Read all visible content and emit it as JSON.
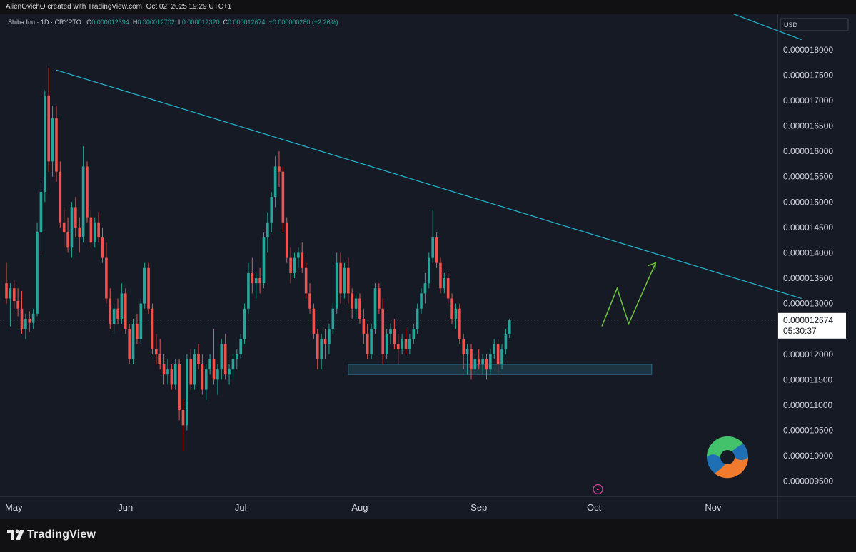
{
  "credit": "AlienOvichO created with TradingView.com, Oct 02, 2025 19:29 UTC+1",
  "legend": {
    "symbol": "Shiba Inu · 1D · CRYPTO",
    "o_label": "O",
    "o": "0.000012394",
    "h_label": "H",
    "h": "0.000012702",
    "l_label": "L",
    "l": "0.000012320",
    "c_label": "C",
    "c": "0.000012674",
    "change": "+0.000000280 (+2.26%)"
  },
  "brand": "TradingView",
  "colors": {
    "up": "#26a69a",
    "down": "#ef5350",
    "trendline": "#22b7cf",
    "projection": "#6fc33d",
    "zone": "#1d3b45",
    "background": "#161a25"
  },
  "chart_data": {
    "type": "candlestick",
    "currency": "USD",
    "y_ticks": [
      "0.000018000",
      "0.000017500",
      "0.000017000",
      "0.000016500",
      "0.000016000",
      "0.000015500",
      "0.000015000",
      "0.000014500",
      "0.000014000",
      "0.000013500",
      "0.000013000",
      "0.000012500",
      "0.000012000",
      "0.000011500",
      "0.000011000",
      "0.000010500",
      "0.000010000",
      "0.000009500"
    ],
    "ylim": [
      9.2e-06,
      1.87e-05
    ],
    "x_labels": [
      {
        "label": "May",
        "date": "2025-05-01"
      },
      {
        "label": "Jun",
        "date": "2025-06-01"
      },
      {
        "label": "Jul",
        "date": "2025-07-01"
      },
      {
        "label": "Aug",
        "date": "2025-08-01"
      },
      {
        "label": "Sep",
        "date": "2025-09-01"
      },
      {
        "label": "Oct",
        "date": "2025-10-01"
      },
      {
        "label": "Nov",
        "date": "2025-11-01"
      }
    ],
    "first_date": "2025-05-01",
    "last_price": "0.000012674",
    "countdown": "05:30:37",
    "ohlc": [
      [
        1.34e-05,
        1.38e-05,
        1.3e-05,
        1.31e-05
      ],
      [
        1.31e-05,
        1.34e-05,
        1.255e-05,
        1.33e-05
      ],
      [
        1.33e-05,
        1.345e-05,
        1.29e-05,
        1.305e-05
      ],
      [
        1.305e-05,
        1.33e-05,
        1.275e-05,
        1.29e-05
      ],
      [
        1.29e-05,
        1.325e-05,
        1.24e-05,
        1.25e-05
      ],
      [
        1.25e-05,
        1.28e-05,
        1.23e-05,
        1.27e-05
      ],
      [
        1.27e-05,
        1.285e-05,
        1.245e-05,
        1.262e-05
      ],
      [
        1.262e-05,
        1.29e-05,
        1.25e-05,
        1.28e-05
      ],
      [
        1.28e-05,
        1.46e-05,
        1.275e-05,
        1.44e-05
      ],
      [
        1.44e-05,
        1.54e-05,
        1.4e-05,
        1.52e-05
      ],
      [
        1.52e-05,
        1.72e-05,
        1.5e-05,
        1.71e-05
      ],
      [
        1.71e-05,
        1.765e-05,
        1.56e-05,
        1.58e-05
      ],
      [
        1.58e-05,
        1.69e-05,
        1.55e-05,
        1.665e-05
      ],
      [
        1.665e-05,
        1.69e-05,
        1.54e-05,
        1.56e-05
      ],
      [
        1.56e-05,
        1.58e-05,
        1.45e-05,
        1.46e-05
      ],
      [
        1.46e-05,
        1.49e-05,
        1.41e-05,
        1.44e-05
      ],
      [
        1.44e-05,
        1.47e-05,
        1.4e-05,
        1.41e-05
      ],
      [
        1.41e-05,
        1.5e-05,
        1.39e-05,
        1.49e-05
      ],
      [
        1.49e-05,
        1.51e-05,
        1.43e-05,
        1.45e-05
      ],
      [
        1.45e-05,
        1.47e-05,
        1.4e-05,
        1.43e-05
      ],
      [
        1.43e-05,
        1.61e-05,
        1.42e-05,
        1.57e-05
      ],
      [
        1.57e-05,
        1.58e-05,
        1.46e-05,
        1.47e-05
      ],
      [
        1.47e-05,
        1.49e-05,
        1.41e-05,
        1.42e-05
      ],
      [
        1.42e-05,
        1.47e-05,
        1.41e-05,
        1.46e-05
      ],
      [
        1.46e-05,
        1.48e-05,
        1.42e-05,
        1.43e-05
      ],
      [
        1.43e-05,
        1.45e-05,
        1.38e-05,
        1.39e-05
      ],
      [
        1.39e-05,
        1.42e-05,
        1.3e-05,
        1.31e-05
      ],
      [
        1.31e-05,
        1.33e-05,
        1.25e-05,
        1.26e-05
      ],
      [
        1.26e-05,
        1.3e-05,
        1.24e-05,
        1.29e-05
      ],
      [
        1.29e-05,
        1.31e-05,
        1.26e-05,
        1.27e-05
      ],
      [
        1.27e-05,
        1.34e-05,
        1.26e-05,
        1.32e-05
      ],
      [
        1.32e-05,
        1.33e-05,
        1.24e-05,
        1.25e-05
      ],
      [
        1.25e-05,
        1.26e-05,
        1.18e-05,
        1.19e-05
      ],
      [
        1.19e-05,
        1.27e-05,
        1.18e-05,
        1.26e-05
      ],
      [
        1.26e-05,
        1.28e-05,
        1.22e-05,
        1.23e-05
      ],
      [
        1.23e-05,
        1.31e-05,
        1.22e-05,
        1.3e-05
      ],
      [
        1.3e-05,
        1.38e-05,
        1.29e-05,
        1.37e-05
      ],
      [
        1.37e-05,
        1.38e-05,
        1.28e-05,
        1.29e-05
      ],
      [
        1.29e-05,
        1.3e-05,
        1.2e-05,
        1.21e-05
      ],
      [
        1.21e-05,
        1.24e-05,
        1.18e-05,
        1.2e-05
      ],
      [
        1.2e-05,
        1.23e-05,
        1.17e-05,
        1.18e-05
      ],
      [
        1.18e-05,
        1.2e-05,
        1.14e-05,
        1.16e-05
      ],
      [
        1.16e-05,
        1.19e-05,
        1.14e-05,
        1.17e-05
      ],
      [
        1.17e-05,
        1.18e-05,
        1.13e-05,
        1.14e-05
      ],
      [
        1.14e-05,
        1.19e-05,
        1.13e-05,
        1.18e-05
      ],
      [
        1.18e-05,
        1.19e-05,
        1.07e-05,
        1.09e-05
      ],
      [
        1.09e-05,
        1.11e-05,
        1.01e-05,
        1.06e-05
      ],
      [
        1.06e-05,
        1.2e-05,
        1.05e-05,
        1.19e-05
      ],
      [
        1.19e-05,
        1.21e-05,
        1.13e-05,
        1.14e-05
      ],
      [
        1.14e-05,
        1.21e-05,
        1.13e-05,
        1.2e-05
      ],
      [
        1.2e-05,
        1.22e-05,
        1.17e-05,
        1.18e-05
      ],
      [
        1.18e-05,
        1.2e-05,
        1.12e-05,
        1.13e-05
      ],
      [
        1.13e-05,
        1.18e-05,
        1.11e-05,
        1.17e-05
      ],
      [
        1.17e-05,
        1.2e-05,
        1.16e-05,
        1.19e-05
      ],
      [
        1.19e-05,
        1.25e-05,
        1.14e-05,
        1.15e-05
      ],
      [
        1.15e-05,
        1.18e-05,
        1.12e-05,
        1.17e-05
      ],
      [
        1.17e-05,
        1.23e-05,
        1.15e-05,
        1.22e-05
      ],
      [
        1.22e-05,
        1.24e-05,
        1.15e-05,
        1.16e-05
      ],
      [
        1.16e-05,
        1.18e-05,
        1.14e-05,
        1.17e-05
      ],
      [
        1.17e-05,
        1.2e-05,
        1.15e-05,
        1.19e-05
      ],
      [
        1.19e-05,
        1.21e-05,
        1.17e-05,
        1.2e-05
      ],
      [
        1.2e-05,
        1.24e-05,
        1.19e-05,
        1.23e-05
      ],
      [
        1.23e-05,
        1.3e-05,
        1.22e-05,
        1.29e-05
      ],
      [
        1.29e-05,
        1.38e-05,
        1.28e-05,
        1.36e-05
      ],
      [
        1.36e-05,
        1.39e-05,
        1.32e-05,
        1.34e-05
      ],
      [
        1.34e-05,
        1.36e-05,
        1.31e-05,
        1.35e-05
      ],
      [
        1.35e-05,
        1.37e-05,
        1.32e-05,
        1.34e-05
      ],
      [
        1.34e-05,
        1.44e-05,
        1.33e-05,
        1.43e-05
      ],
      [
        1.43e-05,
        1.48e-05,
        1.4e-05,
        1.46e-05
      ],
      [
        1.46e-05,
        1.52e-05,
        1.44e-05,
        1.51e-05
      ],
      [
        1.51e-05,
        1.59e-05,
        1.49e-05,
        1.57e-05
      ],
      [
        1.57e-05,
        1.6e-05,
        1.53e-05,
        1.56e-05
      ],
      [
        1.56e-05,
        1.57e-05,
        1.44e-05,
        1.46e-05
      ],
      [
        1.46e-05,
        1.47e-05,
        1.38e-05,
        1.39e-05
      ],
      [
        1.39e-05,
        1.41e-05,
        1.34e-05,
        1.36e-05
      ],
      [
        1.36e-05,
        1.4e-05,
        1.35e-05,
        1.39e-05
      ],
      [
        1.39e-05,
        1.41e-05,
        1.37e-05,
        1.4e-05
      ],
      [
        1.4e-05,
        1.42e-05,
        1.36e-05,
        1.37e-05
      ],
      [
        1.37e-05,
        1.38e-05,
        1.31e-05,
        1.32e-05
      ],
      [
        1.32e-05,
        1.34e-05,
        1.28e-05,
        1.29e-05
      ],
      [
        1.29e-05,
        1.3e-05,
        1.23e-05,
        1.24e-05
      ],
      [
        1.24e-05,
        1.25e-05,
        1.17e-05,
        1.19e-05
      ],
      [
        1.19e-05,
        1.24e-05,
        1.17e-05,
        1.23e-05
      ],
      [
        1.23e-05,
        1.25e-05,
        1.19e-05,
        1.22e-05
      ],
      [
        1.22e-05,
        1.26e-05,
        1.2e-05,
        1.25e-05
      ],
      [
        1.25e-05,
        1.3e-05,
        1.24e-05,
        1.29e-05
      ],
      [
        1.29e-05,
        1.4e-05,
        1.28e-05,
        1.38e-05
      ],
      [
        1.38e-05,
        1.4e-05,
        1.3e-05,
        1.32e-05
      ],
      [
        1.32e-05,
        1.38e-05,
        1.31e-05,
        1.37e-05
      ],
      [
        1.37e-05,
        1.39e-05,
        1.3e-05,
        1.32e-05
      ],
      [
        1.32e-05,
        1.33e-05,
        1.27e-05,
        1.29e-05
      ],
      [
        1.29e-05,
        1.32e-05,
        1.27e-05,
        1.31e-05
      ],
      [
        1.31e-05,
        1.32e-05,
        1.26e-05,
        1.27e-05
      ],
      [
        1.27e-05,
        1.29e-05,
        1.22e-05,
        1.24e-05
      ],
      [
        1.24e-05,
        1.26e-05,
        1.19e-05,
        1.2e-05
      ],
      [
        1.2e-05,
        1.26e-05,
        1.19e-05,
        1.25e-05
      ],
      [
        1.25e-05,
        1.34e-05,
        1.24e-05,
        1.33e-05
      ],
      [
        1.33e-05,
        1.34e-05,
        1.28e-05,
        1.29e-05
      ],
      [
        1.29e-05,
        1.31e-05,
        1.18e-05,
        1.2e-05
      ],
      [
        1.2e-05,
        1.25e-05,
        1.19e-05,
        1.24e-05
      ],
      [
        1.24e-05,
        1.26e-05,
        1.22e-05,
        1.25e-05
      ],
      [
        1.25e-05,
        1.27e-05,
        1.21e-05,
        1.22e-05
      ],
      [
        1.22e-05,
        1.24e-05,
        1.18e-05,
        1.21e-05
      ],
      [
        1.21e-05,
        1.24e-05,
        1.2e-05,
        1.23e-05
      ],
      [
        1.23e-05,
        1.25e-05,
        1.2e-05,
        1.21e-05
      ],
      [
        1.21e-05,
        1.24e-05,
        1.2e-05,
        1.23e-05
      ],
      [
        1.23e-05,
        1.26e-05,
        1.22e-05,
        1.25e-05
      ],
      [
        1.25e-05,
        1.3e-05,
        1.24e-05,
        1.29e-05
      ],
      [
        1.29e-05,
        1.33e-05,
        1.28e-05,
        1.32e-05
      ],
      [
        1.32e-05,
        1.36e-05,
        1.3e-05,
        1.34e-05
      ],
      [
        1.34e-05,
        1.4e-05,
        1.33e-05,
        1.39e-05
      ],
      [
        1.39e-05,
        1.485e-05,
        1.38e-05,
        1.43e-05
      ],
      [
        1.43e-05,
        1.44e-05,
        1.37e-05,
        1.38e-05
      ],
      [
        1.38e-05,
        1.39e-05,
        1.32e-05,
        1.33e-05
      ],
      [
        1.33e-05,
        1.36e-05,
        1.32e-05,
        1.35e-05
      ],
      [
        1.35e-05,
        1.36e-05,
        1.3e-05,
        1.31e-05
      ],
      [
        1.31e-05,
        1.32e-05,
        1.26e-05,
        1.27e-05
      ],
      [
        1.27e-05,
        1.3e-05,
        1.25e-05,
        1.29e-05
      ],
      [
        1.29e-05,
        1.3e-05,
        1.22e-05,
        1.23e-05
      ],
      [
        1.23e-05,
        1.24e-05,
        1.17e-05,
        1.2e-05
      ],
      [
        1.2e-05,
        1.22e-05,
        1.16e-05,
        1.21e-05
      ],
      [
        1.21e-05,
        1.22e-05,
        1.15e-05,
        1.17e-05
      ],
      [
        1.17e-05,
        1.2e-05,
        1.16e-05,
        1.19e-05
      ],
      [
        1.19e-05,
        1.21e-05,
        1.17e-05,
        1.18e-05
      ],
      [
        1.18e-05,
        1.2e-05,
        1.16e-05,
        1.19e-05
      ],
      [
        1.19e-05,
        1.2e-05,
        1.15e-05,
        1.17e-05
      ],
      [
        1.17e-05,
        1.21e-05,
        1.16e-05,
        1.2e-05
      ],
      [
        1.2e-05,
        1.23e-05,
        1.19e-05,
        1.22e-05
      ],
      [
        1.22e-05,
        1.23e-05,
        1.16e-05,
        1.18e-05
      ],
      [
        1.18e-05,
        1.22e-05,
        1.17e-05,
        1.21e-05
      ],
      [
        1.21e-05,
        1.25e-05,
        1.2e-05,
        1.239e-05
      ],
      [
        1.239e-05,
        1.27e-05,
        1.232e-05,
        1.267e-05
      ]
    ],
    "annotations": {
      "trendline": {
        "from": {
          "date": "2025-05-14",
          "price": 1.76e-05
        },
        "to": {
          "date": "2025-11-24",
          "price": 1.31e-05
        }
      },
      "trendline2": {
        "from": {
          "date": "2025-11-03",
          "price": 1.88e-05
        },
        "to": {
          "date": "2025-11-24",
          "price": 1.82e-05
        }
      },
      "support_zone": {
        "from_date": "2025-07-29",
        "to_date": "2025-10-16",
        "low": 1.16e-05,
        "high": 1.18e-05
      },
      "projection": [
        {
          "date": "2025-10-03",
          "price": 1.255e-05
        },
        {
          "date": "2025-10-07",
          "price": 1.33e-05
        },
        {
          "date": "2025-10-10",
          "price": 1.26e-05
        },
        {
          "date": "2025-10-17",
          "price": 1.38e-05
        },
        {
          "date": "2025-10-14",
          "price": 1.36e-05
        },
        {
          "date": "2025-10-17",
          "price": 1.38e-05
        },
        {
          "date": "2025-10-18",
          "price": 1.37e-05
        }
      ]
    }
  }
}
